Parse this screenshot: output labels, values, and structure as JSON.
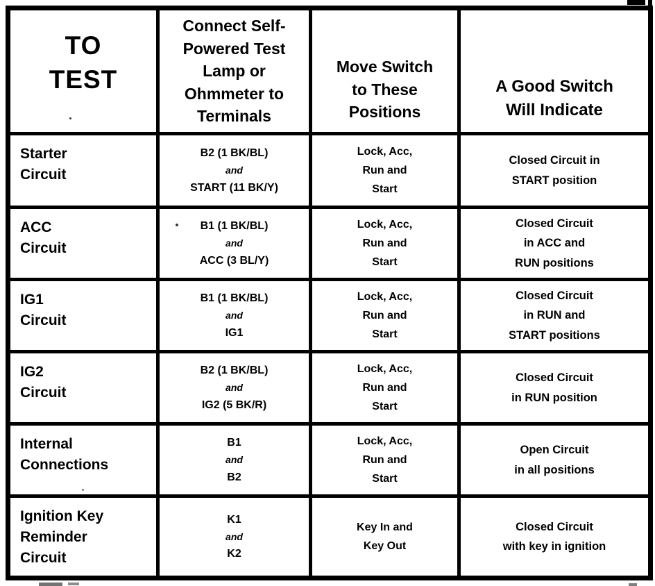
{
  "table": {
    "headers": {
      "to_test": "TO\nTEST",
      "terminals": "Connect Self-\nPowered Test\nLamp or\nOhmmeter to\nTerminals",
      "positions": "Move Switch\nto These\nPositions",
      "indicate": "A Good Switch\nWill Indicate"
    },
    "rows": [
      {
        "test": "Starter\nCircuit",
        "terminal_top": "B2 (1 BK/BL)",
        "conjunction": "and",
        "terminal_bottom": "START (11 BK/Y)",
        "positions": "Lock, Acc,\nRun and\nStart",
        "indicate": "Closed Circuit in\nSTART position"
      },
      {
        "test": "ACC\nCircuit",
        "terminal_top": "B1 (1 BK/BL)",
        "conjunction": "and",
        "terminal_bottom": "ACC (3 BL/Y)",
        "positions": "Lock, Acc,\nRun and\nStart",
        "indicate": "Closed Circuit\nin ACC and\nRUN positions"
      },
      {
        "test": "IG1\nCircuit",
        "terminal_top": "B1 (1 BK/BL)",
        "conjunction": "and",
        "terminal_bottom": "IG1",
        "positions": "Lock, Acc,\nRun and\nStart",
        "indicate": "Closed Circuit\nin RUN and\nSTART positions"
      },
      {
        "test": "IG2\nCircuit",
        "terminal_top": "B2 (1 BK/BL)",
        "conjunction": "and",
        "terminal_bottom": "IG2 (5 BK/R)",
        "positions": "Lock, Acc,\nRun and\nStart",
        "indicate": "Closed Circuit\nin RUN position"
      },
      {
        "test": "Internal\nConnections",
        "terminal_top": "B1",
        "conjunction": "and",
        "terminal_bottom": "B2",
        "positions": "Lock, Acc,\nRun and\nStart",
        "indicate": "Open Circuit\nin all positions"
      },
      {
        "test": "Ignition Key\nReminder\nCircuit",
        "terminal_top": "K1",
        "conjunction": "and",
        "terminal_bottom": "K2",
        "positions": "Key In and\nKey Out",
        "indicate": "Closed Circuit\nwith key in ignition"
      }
    ]
  }
}
